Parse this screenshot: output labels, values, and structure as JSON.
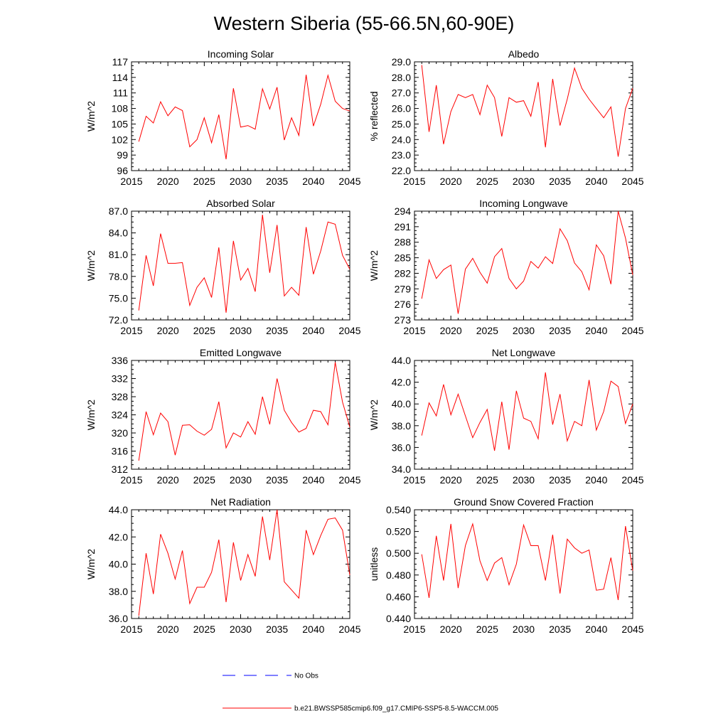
{
  "title": "Western Siberia (55-66.5N,60-90E)",
  "colors": {
    "model": "#ff0000",
    "obs": "#0000ff",
    "axis": "#000000",
    "background": "#ffffff"
  },
  "legend": {
    "obs_label": "No Obs",
    "model_label": "b.e21.BWSSP585cmip6.f09_g17.CMIP6-SSP5-8.5-WACCM.005"
  },
  "chart_data": [
    {
      "type": "line",
      "title": "Incoming Solar",
      "ylabel": "W/m^2",
      "xlim": [
        2015,
        2045
      ],
      "ylim": [
        96,
        117
      ],
      "xticks": [
        "2015",
        "2020",
        "2025",
        "2030",
        "2035",
        "2040",
        "2045"
      ],
      "yticks": [
        "96",
        "99",
        "102",
        "105",
        "108",
        "111",
        "114",
        "117"
      ],
      "x": [
        2016,
        2017,
        2018,
        2019,
        2020,
        2021,
        2022,
        2023,
        2024,
        2025,
        2026,
        2027,
        2028,
        2029,
        2030,
        2031,
        2032,
        2033,
        2034,
        2035,
        2036,
        2037,
        2038,
        2039,
        2040,
        2041,
        2042,
        2043,
        2044,
        2045
      ],
      "values": [
        101.6,
        106.5,
        105.2,
        109.3,
        106.6,
        108.3,
        107.6,
        100.6,
        102.0,
        106.2,
        101.4,
        106.8,
        98.2,
        111.9,
        104.4,
        104.7,
        104.0,
        111.8,
        107.9,
        112.1,
        101.9,
        106.2,
        102.8,
        114.5,
        104.6,
        108.8,
        114.4,
        109.4,
        108.0,
        107.5
      ]
    },
    {
      "type": "line",
      "title": "Albedo",
      "ylabel": "% reflected",
      "xlim": [
        2015,
        2045
      ],
      "ylim": [
        22.0,
        29.0
      ],
      "xticks": [
        "2015",
        "2020",
        "2025",
        "2030",
        "2035",
        "2040",
        "2045"
      ],
      "yticks": [
        "22.0",
        "23.0",
        "24.0",
        "25.0",
        "26.0",
        "27.0",
        "28.0",
        "29.0"
      ],
      "x": [
        2016,
        2017,
        2018,
        2019,
        2020,
        2021,
        2022,
        2023,
        2024,
        2025,
        2026,
        2027,
        2028,
        2029,
        2030,
        2031,
        2032,
        2033,
        2034,
        2035,
        2036,
        2037,
        2038,
        2039,
        2040,
        2041,
        2042,
        2043,
        2044,
        2045
      ],
      "values": [
        28.8,
        24.5,
        27.5,
        23.7,
        25.8,
        26.9,
        26.7,
        26.9,
        25.6,
        27.5,
        26.7,
        24.2,
        26.7,
        26.4,
        26.5,
        25.5,
        27.7,
        23.5,
        27.9,
        24.9,
        26.6,
        28.6,
        27.3,
        26.6,
        26.0,
        25.4,
        26.1,
        22.9,
        26.0,
        27.3
      ]
    },
    {
      "type": "line",
      "title": "Absorbed Solar",
      "ylabel": "W/m^2",
      "xlim": [
        2015,
        2045
      ],
      "ylim": [
        72.0,
        87.0
      ],
      "xticks": [
        "2015",
        "2020",
        "2025",
        "2030",
        "2035",
        "2040",
        "2045"
      ],
      "yticks": [
        "72.0",
        "75.0",
        "78.0",
        "81.0",
        "84.0",
        "87.0"
      ],
      "x": [
        2016,
        2017,
        2018,
        2019,
        2020,
        2021,
        2022,
        2023,
        2024,
        2025,
        2026,
        2027,
        2028,
        2029,
        2030,
        2031,
        2032,
        2033,
        2034,
        2035,
        2036,
        2037,
        2038,
        2039,
        2040,
        2041,
        2042,
        2043,
        2044,
        2045
      ],
      "values": [
        73.3,
        80.9,
        76.7,
        83.9,
        79.8,
        79.8,
        79.9,
        74.0,
        76.5,
        77.8,
        75.1,
        82.0,
        73.0,
        82.9,
        77.5,
        79.1,
        75.9,
        86.5,
        78.5,
        85.1,
        75.3,
        76.5,
        75.4,
        84.8,
        78.3,
        81.5,
        85.5,
        85.2,
        80.9,
        79.0
      ]
    },
    {
      "type": "line",
      "title": "Incoming Longwave",
      "ylabel": "W/m^2",
      "xlim": [
        2015,
        2045
      ],
      "ylim": [
        273,
        294
      ],
      "xticks": [
        "2015",
        "2020",
        "2025",
        "2030",
        "2035",
        "2040",
        "2045"
      ],
      "yticks": [
        "273",
        "276",
        "279",
        "282",
        "285",
        "288",
        "291",
        "294"
      ],
      "x": [
        2016,
        2017,
        2018,
        2019,
        2020,
        2021,
        2022,
        2023,
        2024,
        2025,
        2026,
        2027,
        2028,
        2029,
        2030,
        2031,
        2032,
        2033,
        2034,
        2035,
        2036,
        2037,
        2038,
        2039,
        2040,
        2041,
        2042,
        2043,
        2044,
        2045
      ],
      "values": [
        277.1,
        284.6,
        281.0,
        282.7,
        283.6,
        274.2,
        282.8,
        284.9,
        282.2,
        280.1,
        285.2,
        286.8,
        281.0,
        279.0,
        280.5,
        284.3,
        283.0,
        285.2,
        283.9,
        290.6,
        288.3,
        284.0,
        282.3,
        278.8,
        287.5,
        285.4,
        279.9,
        294.0,
        288.8,
        281.7
      ]
    },
    {
      "type": "line",
      "title": "Emitted Longwave",
      "ylabel": "W/m^2",
      "xlim": [
        2015,
        2045
      ],
      "ylim": [
        312,
        336
      ],
      "xticks": [
        "2015",
        "2020",
        "2025",
        "2030",
        "2035",
        "2040",
        "2045"
      ],
      "yticks": [
        "312",
        "316",
        "320",
        "324",
        "328",
        "332",
        "336"
      ],
      "x": [
        2016,
        2017,
        2018,
        2019,
        2020,
        2021,
        2022,
        2023,
        2024,
        2025,
        2026,
        2027,
        2028,
        2029,
        2030,
        2031,
        2032,
        2033,
        2034,
        2035,
        2036,
        2037,
        2038,
        2039,
        2040,
        2041,
        2042,
        2043,
        2044,
        2045
      ],
      "values": [
        313.9,
        324.7,
        319.6,
        324.4,
        322.5,
        315.1,
        321.7,
        321.8,
        320.4,
        319.5,
        320.8,
        326.9,
        316.7,
        320.0,
        319.1,
        322.5,
        319.7,
        328.0,
        321.9,
        332.0,
        325.0,
        322.3,
        320.2,
        321.0,
        325.0,
        324.7,
        321.8,
        335.6,
        326.8,
        321.3
      ]
    },
    {
      "type": "line",
      "title": "Net Longwave",
      "ylabel": "W/m^2",
      "xlim": [
        2015,
        2045
      ],
      "ylim": [
        34.0,
        44.0
      ],
      "xticks": [
        "2015",
        "2020",
        "2025",
        "2030",
        "2035",
        "2040",
        "2045"
      ],
      "yticks": [
        "34.0",
        "36.0",
        "38.0",
        "40.0",
        "42.0",
        "44.0"
      ],
      "x": [
        2016,
        2017,
        2018,
        2019,
        2020,
        2021,
        2022,
        2023,
        2024,
        2025,
        2026,
        2027,
        2028,
        2029,
        2030,
        2031,
        2032,
        2033,
        2034,
        2035,
        2036,
        2037,
        2038,
        2039,
        2040,
        2041,
        2042,
        2043,
        2044,
        2045
      ],
      "values": [
        37.1,
        40.1,
        38.9,
        41.8,
        39.0,
        40.9,
        38.9,
        36.9,
        38.3,
        39.5,
        35.7,
        40.2,
        35.8,
        41.2,
        38.7,
        38.4,
        36.8,
        42.9,
        38.1,
        40.9,
        36.6,
        38.4,
        38.0,
        42.2,
        37.6,
        39.3,
        42.1,
        41.6,
        38.2,
        40.0
      ]
    },
    {
      "type": "line",
      "title": "Net Radiation",
      "ylabel": "W/m^2",
      "xlim": [
        2015,
        2045
      ],
      "ylim": [
        36.0,
        44.0
      ],
      "xticks": [
        "2015",
        "2020",
        "2025",
        "2030",
        "2035",
        "2040",
        "2045"
      ],
      "yticks": [
        "36.0",
        "38.0",
        "40.0",
        "42.0",
        "44.0"
      ],
      "x": [
        2016,
        2017,
        2018,
        2019,
        2020,
        2021,
        2022,
        2023,
        2024,
        2025,
        2026,
        2027,
        2028,
        2029,
        2030,
        2031,
        2032,
        2033,
        2034,
        2035,
        2036,
        2037,
        2038,
        2039,
        2040,
        2041,
        2042,
        2043,
        2044,
        2045
      ],
      "values": [
        36.2,
        40.8,
        37.8,
        42.2,
        40.8,
        38.9,
        41.0,
        37.1,
        38.3,
        38.3,
        39.4,
        41.8,
        37.2,
        41.6,
        38.8,
        40.7,
        39.1,
        43.5,
        40.3,
        44.0,
        38.7,
        38.1,
        37.5,
        42.5,
        40.7,
        42.1,
        43.3,
        43.4,
        42.5,
        39.2
      ]
    },
    {
      "type": "line",
      "title": "Ground Snow Covered Fraction",
      "ylabel": "unitless",
      "xlim": [
        2015,
        2045
      ],
      "ylim": [
        0.44,
        0.54
      ],
      "xticks": [
        "2015",
        "2020",
        "2025",
        "2030",
        "2035",
        "2040",
        "2045"
      ],
      "yticks": [
        "0.440",
        "0.460",
        "0.480",
        "0.500",
        "0.520",
        "0.540"
      ],
      "x": [
        2016,
        2017,
        2018,
        2019,
        2020,
        2021,
        2022,
        2023,
        2024,
        2025,
        2026,
        2027,
        2028,
        2029,
        2030,
        2031,
        2032,
        2033,
        2034,
        2035,
        2036,
        2037,
        2038,
        2039,
        2040,
        2041,
        2042,
        2043,
        2044,
        2045
      ],
      "values": [
        0.499,
        0.459,
        0.516,
        0.475,
        0.527,
        0.468,
        0.507,
        0.527,
        0.493,
        0.475,
        0.491,
        0.496,
        0.471,
        0.49,
        0.526,
        0.507,
        0.507,
        0.475,
        0.517,
        0.463,
        0.513,
        0.505,
        0.5,
        0.503,
        0.466,
        0.467,
        0.496,
        0.457,
        0.525,
        0.484
      ]
    }
  ]
}
